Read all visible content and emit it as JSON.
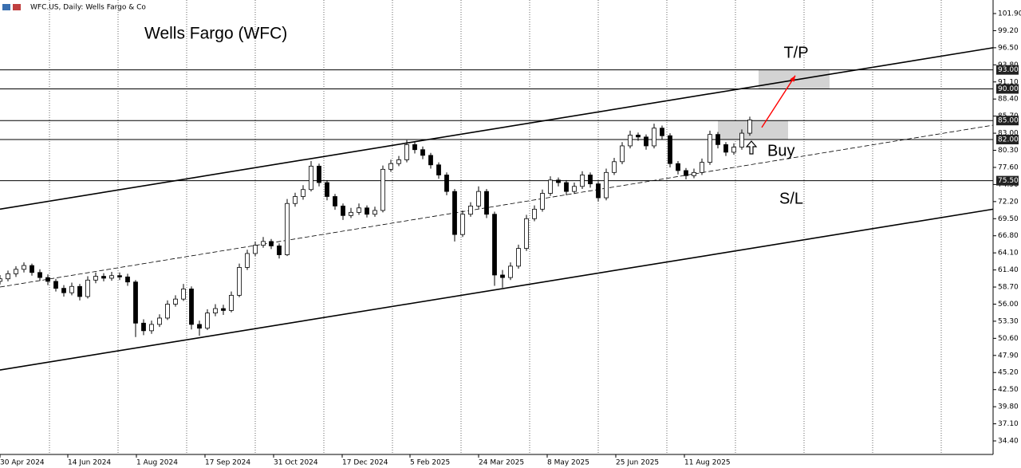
{
  "chart_data": {
    "type": "candlestick",
    "header": "WFC.US, Daily:  Wells Fargo & Co",
    "title": "Wells Fargo (WFC)",
    "up_color": "#ffffff",
    "down_color": "#000000",
    "xlim": [
      0,
      124.5
    ],
    "xticks": [
      {
        "value": 0,
        "label": "30 Apr 2024"
      },
      {
        "value": 8.5,
        "label": "14 Jun 2024"
      },
      {
        "value": 17.1,
        "label": "1 Aug 2024"
      },
      {
        "value": 25.7,
        "label": "17 Sep 2024"
      },
      {
        "value": 34.3,
        "label": "31 Oct 2024"
      },
      {
        "value": 42.9,
        "label": "17 Dec 2024"
      },
      {
        "value": 51.4,
        "label": "5 Feb 2025"
      },
      {
        "value": 60,
        "label": "24 Mar 2025"
      },
      {
        "value": 68.6,
        "label": "8 May 2025"
      },
      {
        "value": 77.2,
        "label": "25 Jun 2025"
      },
      {
        "value": 85.8,
        "label": "11 Aug 2025"
      }
    ],
    "ylim": [
      32.26,
      104.04
    ],
    "yticks": [
      {
        "value": 101.9,
        "label": "101.90"
      },
      {
        "value": 99.2,
        "label": "99.20"
      },
      {
        "value": 96.5,
        "label": "96.50"
      },
      {
        "value": 93.8,
        "label": "93.80"
      },
      {
        "value": 91.1,
        "label": "91.10"
      },
      {
        "value": 88.4,
        "label": "88.40"
      },
      {
        "value": 85.7,
        "label": "85.70"
      },
      {
        "value": 83,
        "label": "83.00"
      },
      {
        "value": 80.3,
        "label": "80.30"
      },
      {
        "value": 77.6,
        "label": "77.60"
      },
      {
        "value": 74.9,
        "label": "74.90"
      },
      {
        "value": 72.2,
        "label": "72.20"
      },
      {
        "value": 69.5,
        "label": "69.50"
      },
      {
        "value": 66.8,
        "label": "66.80"
      },
      {
        "value": 64.1,
        "label": "64.10"
      },
      {
        "value": 61.4,
        "label": "61.40"
      },
      {
        "value": 58.7,
        "label": "58.70"
      },
      {
        "value": 56,
        "label": "56.00"
      },
      {
        "value": 53.3,
        "label": "53.30"
      },
      {
        "value": 50.6,
        "label": "50.60"
      },
      {
        "value": 47.9,
        "label": "47.90"
      },
      {
        "value": 45.2,
        "label": "45.20"
      },
      {
        "value": 42.5,
        "label": "42.50"
      },
      {
        "value": 39.8,
        "label": "39.80"
      },
      {
        "value": 37.1,
        "label": "37.10"
      },
      {
        "value": 34.4,
        "label": "34.40"
      }
    ],
    "levels": [
      {
        "value": 93,
        "label": "93.00"
      },
      {
        "value": 90,
        "label": "90.00"
      },
      {
        "value": 85,
        "label": "85.00"
      },
      {
        "value": 82,
        "label": "82.00"
      },
      {
        "value": 75.5,
        "label": "75.50"
      }
    ],
    "trend_lines": [
      {
        "x": [
          0,
          124.5
        ],
        "y": [
          71.0,
          96.5
        ],
        "dashed": false
      },
      {
        "x": [
          0,
          124.5
        ],
        "y": [
          45.6,
          71.0
        ],
        "dashed": false
      },
      {
        "x": [
          0,
          124.5
        ],
        "y": [
          58.7,
          84.27
        ],
        "dashed": true
      }
    ],
    "zones": [
      {
        "x": [
          95.1,
          104
        ],
        "y": [
          90,
          93
        ],
        "color": "#d3d3d3"
      },
      {
        "x": [
          90,
          98.8
        ],
        "y": [
          82,
          85
        ],
        "color": "#d3d3d3"
      }
    ],
    "arrow": {
      "x": [
        95.5,
        99.7
      ],
      "y": [
        83.9,
        92.1
      ],
      "color": "#ff0000"
    },
    "annotations": {
      "take_profit": "T/P",
      "buy": "Buy",
      "stop_loss": "S/L"
    },
    "candles": [
      [
        59.6,
        60.6,
        59.1,
        60.0
      ],
      [
        60.0,
        61.3,
        59.6,
        60.8
      ],
      [
        60.8,
        62.0,
        60.3,
        61.5
      ],
      [
        61.5,
        62.6,
        61.0,
        62.1
      ],
      [
        62.1,
        62.4,
        60.5,
        61.0
      ],
      [
        61.0,
        61.5,
        59.7,
        60.2
      ],
      [
        60.2,
        60.7,
        59.0,
        59.6
      ],
      [
        59.6,
        60.0,
        58.0,
        58.5
      ],
      [
        58.5,
        59.0,
        57.2,
        57.8
      ],
      [
        57.8,
        59.4,
        57.4,
        58.8
      ],
      [
        58.8,
        59.2,
        56.6,
        57.2
      ],
      [
        57.2,
        60.4,
        56.9,
        59.8
      ],
      [
        59.8,
        61.0,
        59.3,
        60.4
      ],
      [
        60.4,
        60.9,
        59.6,
        60.1
      ],
      [
        60.1,
        61.1,
        59.7,
        60.5
      ],
      [
        60.5,
        61.0,
        59.8,
        60.3
      ],
      [
        60.3,
        60.8,
        58.9,
        59.5
      ],
      [
        59.5,
        59.8,
        50.8,
        53.0
      ],
      [
        53.0,
        53.6,
        51.1,
        51.8
      ],
      [
        51.8,
        53.4,
        51.3,
        52.8
      ],
      [
        52.8,
        54.4,
        52.4,
        53.8
      ],
      [
        53.8,
        56.6,
        53.5,
        56.0
      ],
      [
        56.0,
        57.4,
        55.6,
        56.8
      ],
      [
        56.8,
        59.2,
        56.5,
        58.4
      ],
      [
        58.4,
        58.8,
        52.0,
        52.8
      ],
      [
        52.8,
        53.4,
        51.0,
        52.2
      ],
      [
        52.2,
        55.2,
        51.9,
        54.6
      ],
      [
        54.6,
        56.0,
        54.1,
        55.3
      ],
      [
        55.3,
        55.9,
        54.3,
        55.0
      ],
      [
        55.0,
        58.0,
        54.7,
        57.4
      ],
      [
        57.4,
        62.4,
        57.1,
        61.8
      ],
      [
        61.8,
        64.6,
        61.4,
        64.0
      ],
      [
        64.0,
        65.9,
        63.6,
        65.3
      ],
      [
        65.3,
        66.6,
        64.9,
        65.9
      ],
      [
        65.9,
        66.3,
        64.7,
        65.2
      ],
      [
        65.2,
        65.6,
        63.2,
        63.8
      ],
      [
        63.8,
        72.6,
        63.6,
        71.9
      ],
      [
        71.9,
        73.6,
        71.4,
        73.0
      ],
      [
        73.0,
        74.8,
        72.5,
        74.1
      ],
      [
        74.1,
        78.6,
        73.8,
        77.8
      ],
      [
        77.8,
        78.2,
        74.6,
        75.2
      ],
      [
        75.2,
        75.6,
        72.4,
        73.0
      ],
      [
        73.0,
        73.4,
        70.9,
        71.5
      ],
      [
        71.5,
        71.9,
        69.3,
        70.0
      ],
      [
        70.0,
        71.2,
        69.6,
        70.5
      ],
      [
        70.5,
        71.9,
        70.1,
        71.2
      ],
      [
        71.2,
        71.6,
        69.7,
        70.2
      ],
      [
        70.2,
        71.4,
        69.8,
        70.8
      ],
      [
        70.8,
        77.9,
        70.5,
        77.3
      ],
      [
        77.3,
        78.8,
        76.9,
        78.2
      ],
      [
        78.2,
        79.4,
        77.8,
        78.8
      ],
      [
        78.8,
        81.9,
        78.4,
        81.2
      ],
      [
        81.2,
        81.6,
        79.8,
        80.4
      ],
      [
        80.4,
        80.9,
        78.9,
        79.5
      ],
      [
        79.5,
        79.9,
        77.4,
        78.0
      ],
      [
        78.0,
        78.4,
        75.8,
        76.4
      ],
      [
        76.4,
        76.8,
        73.2,
        73.8
      ],
      [
        73.8,
        74.2,
        65.9,
        67.0
      ],
      [
        67.0,
        70.8,
        66.6,
        70.2
      ],
      [
        70.2,
        72.1,
        69.8,
        71.5
      ],
      [
        71.5,
        74.6,
        71.1,
        73.8
      ],
      [
        73.8,
        74.2,
        69.6,
        70.2
      ],
      [
        70.2,
        70.6,
        58.9,
        60.6
      ],
      [
        60.6,
        61.4,
        58.6,
        60.2
      ],
      [
        60.2,
        62.6,
        59.8,
        62.0
      ],
      [
        62.0,
        65.4,
        61.6,
        64.8
      ],
      [
        64.8,
        70.1,
        64.4,
        69.5
      ],
      [
        69.5,
        71.6,
        69.1,
        71.0
      ],
      [
        71.0,
        74.1,
        70.6,
        73.5
      ],
      [
        73.5,
        76.2,
        73.1,
        75.6
      ],
      [
        75.6,
        76.0,
        74.6,
        75.2
      ],
      [
        75.2,
        75.6,
        73.2,
        73.8
      ],
      [
        73.8,
        75.2,
        73.4,
        74.6
      ],
      [
        74.6,
        77.0,
        74.2,
        76.4
      ],
      [
        76.4,
        76.8,
        74.4,
        75.0
      ],
      [
        75.0,
        75.4,
        72.2,
        72.8
      ],
      [
        72.8,
        77.4,
        72.4,
        76.8
      ],
      [
        76.8,
        79.1,
        76.4,
        78.5
      ],
      [
        78.5,
        81.6,
        78.1,
        81.0
      ],
      [
        81.0,
        83.4,
        80.6,
        82.7
      ],
      [
        82.7,
        83.1,
        81.8,
        82.4
      ],
      [
        82.4,
        82.8,
        80.4,
        81.0
      ],
      [
        81.0,
        84.5,
        80.6,
        83.8
      ],
      [
        83.8,
        84.2,
        82.0,
        82.6
      ],
      [
        82.6,
        83.0,
        77.6,
        78.2
      ],
      [
        78.2,
        78.6,
        76.5,
        77.1
      ],
      [
        77.1,
        77.5,
        75.7,
        76.3
      ],
      [
        76.3,
        77.4,
        75.9,
        76.8
      ],
      [
        76.8,
        79.0,
        76.4,
        78.4
      ],
      [
        78.4,
        83.4,
        78.0,
        82.8
      ],
      [
        82.8,
        83.2,
        80.6,
        81.2
      ],
      [
        81.2,
        81.6,
        79.4,
        80.0
      ],
      [
        80.0,
        81.4,
        79.6,
        80.8
      ],
      [
        80.8,
        83.6,
        80.4,
        83.0
      ],
      [
        83.0,
        85.6,
        82.6,
        85.1
      ]
    ]
  }
}
